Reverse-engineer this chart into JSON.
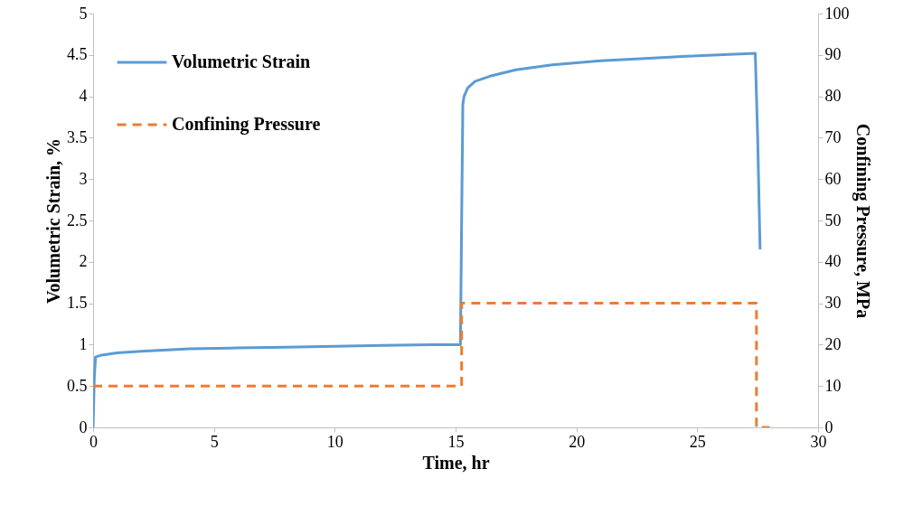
{
  "chart_data": {
    "type": "line",
    "xlabel": "Time, hr",
    "ylabel": "Volumetric Strain, %",
    "y2label": "Confining Pressure, MPa",
    "xlim": [
      0,
      30
    ],
    "xticks": [
      0,
      5,
      10,
      15,
      20,
      25,
      30
    ],
    "ylim": [
      0,
      5
    ],
    "yticks": [
      0,
      0.5,
      1,
      1.5,
      2,
      2.5,
      3,
      3.5,
      4,
      4.5,
      5
    ],
    "y2lim": [
      0,
      100
    ],
    "y2ticks": [
      0,
      10,
      20,
      30,
      40,
      50,
      60,
      70,
      80,
      90,
      100
    ],
    "grid": false,
    "legend": "top left",
    "marker": "none",
    "series": [
      {
        "name": "Volumetric Strain",
        "color": "#5b9bd5",
        "line_style": "solid",
        "x": [
          0.0,
          0.05,
          0.1,
          0.3,
          1,
          2,
          4,
          6,
          8,
          10,
          12,
          14,
          15.2,
          15.25,
          15.3,
          15.35,
          15.5,
          15.8,
          16.5,
          17.5,
          19,
          21,
          23,
          25,
          27.4,
          27.5,
          27.6
        ],
        "values": [
          0,
          0.6,
          0.85,
          0.87,
          0.9,
          0.92,
          0.95,
          0.96,
          0.97,
          0.98,
          0.99,
          1.0,
          1.0,
          2.5,
          3.9,
          4.0,
          4.1,
          4.18,
          4.25,
          4.32,
          4.38,
          4.43,
          4.46,
          4.49,
          4.52,
          3.5,
          2.15
        ]
      },
      {
        "name": "Confining Pressure",
        "color": "#ed7d31",
        "line_style": "dashed",
        "axis": "y2",
        "x": [
          0.0,
          15.25,
          15.25,
          27.45,
          27.45,
          28
        ],
        "values": [
          10,
          10,
          30,
          30,
          0,
          0
        ]
      }
    ]
  }
}
